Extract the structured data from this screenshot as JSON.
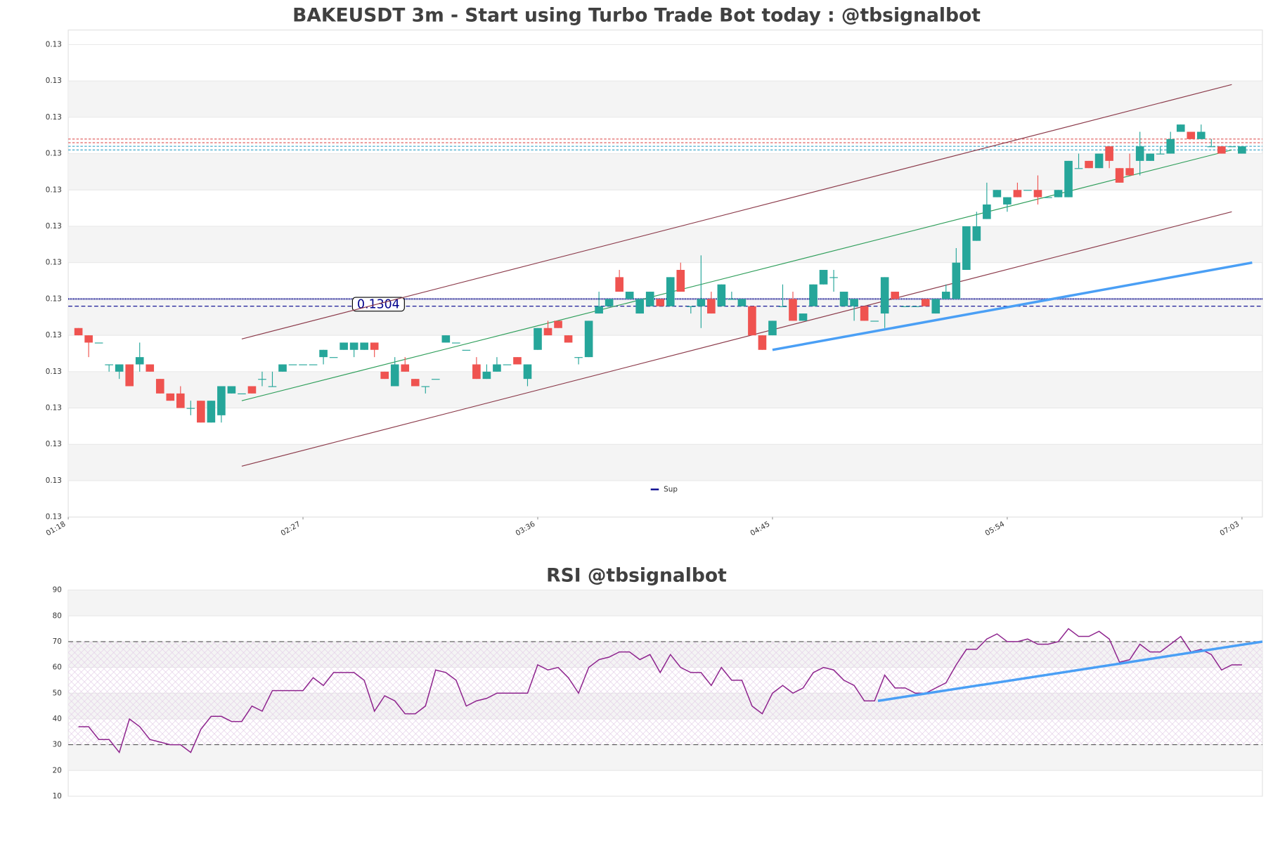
{
  "chart_data": [
    {
      "type": "candlestick",
      "title": "BAKEUSDT 3m - Start using Turbo Trade Bot today : @tbsignalbot",
      "x": [
        81,
        84,
        87,
        90,
        93,
        96,
        99,
        102,
        105,
        108,
        111,
        114,
        117,
        120,
        123,
        126,
        129,
        132,
        135,
        138,
        141,
        144,
        147,
        150,
        153,
        156,
        159,
        162,
        165,
        168,
        171,
        174,
        177,
        180,
        183,
        186,
        189,
        192,
        195,
        198,
        201,
        204,
        207,
        210,
        213,
        216,
        219,
        222,
        225,
        228,
        231,
        234,
        237,
        240,
        243,
        246,
        249,
        252,
        255,
        258,
        261,
        264,
        267,
        270,
        273,
        276,
        279,
        282,
        285,
        288,
        291,
        294,
        297,
        300,
        303,
        306,
        309,
        312,
        315,
        318,
        321,
        324,
        327,
        330,
        333,
        336,
        339,
        342,
        345,
        348,
        351,
        354,
        357,
        360,
        363,
        366,
        369,
        372,
        375,
        378,
        381,
        384,
        387,
        390,
        393,
        396,
        399,
        402,
        405,
        408,
        411,
        414,
        417,
        420,
        423
      ],
      "open": [
        0.13032,
        0.1303,
        0.13028,
        0.13022,
        0.1302,
        0.13022,
        0.13022,
        0.13022,
        0.13018,
        0.13014,
        0.13014,
        0.1301,
        0.13012,
        0.13006,
        0.13008,
        0.13014,
        0.13014,
        0.13016,
        0.13018,
        0.13016,
        0.1302,
        0.13022,
        0.13022,
        0.13022,
        0.13024,
        0.13024,
        0.13026,
        0.13026,
        0.13026,
        0.13028,
        0.1302,
        0.13016,
        0.13022,
        0.13018,
        0.13016,
        0.13018,
        0.13028,
        0.13028,
        0.13026,
        0.13022,
        0.13018,
        0.1302,
        0.13022,
        0.13024,
        0.13018,
        0.13026,
        0.13032,
        0.13034,
        0.1303,
        0.13024,
        0.13024,
        0.13036,
        0.13038,
        0.13046,
        0.1304,
        0.13036,
        0.13038,
        0.1304,
        0.13038,
        0.13048,
        0.13038,
        0.13038,
        0.1304,
        0.13038,
        0.1304,
        0.13038,
        0.13038,
        0.1303,
        0.1303,
        0.13038,
        0.1304,
        0.13034,
        0.13038,
        0.13044,
        0.13046,
        0.13038,
        0.13038,
        0.13038,
        0.13034,
        0.13036,
        0.13042,
        0.13038,
        0.13038,
        0.1304,
        0.13036,
        0.1304,
        0.1304,
        0.13048,
        0.13056,
        0.13062,
        0.13068,
        0.13066,
        0.1307,
        0.1307,
        0.1307,
        0.13068,
        0.13068,
        0.13068,
        0.13076,
        0.13078,
        0.13076,
        0.13082,
        0.13076,
        0.13076,
        0.13078,
        0.13078,
        0.1308,
        0.1308,
        0.13086,
        0.13086,
        0.13084,
        0.13082,
        0.13082,
        0.13082,
        0.1308
      ],
      "high": [
        0.13032,
        0.1303,
        0.13028,
        0.13022,
        0.13022,
        0.13022,
        0.13028,
        0.13022,
        0.13018,
        0.13014,
        0.13016,
        0.13012,
        0.13012,
        0.13012,
        0.13016,
        0.13016,
        0.13014,
        0.13016,
        0.1302,
        0.1302,
        0.13022,
        0.13022,
        0.13022,
        0.13022,
        0.13026,
        0.13024,
        0.13028,
        0.13028,
        0.13028,
        0.13028,
        0.1302,
        0.13024,
        0.13024,
        0.13018,
        0.13016,
        0.13018,
        0.1303,
        0.13028,
        0.13026,
        0.13024,
        0.13022,
        0.13024,
        0.13022,
        0.13024,
        0.13022,
        0.13032,
        0.13034,
        0.13034,
        0.1303,
        0.13024,
        0.13034,
        0.13042,
        0.1304,
        0.13048,
        0.13042,
        0.1304,
        0.13042,
        0.1304,
        0.13046,
        0.1305,
        0.13038,
        0.13052,
        0.13042,
        0.13044,
        0.13042,
        0.1304,
        0.13038,
        0.1303,
        0.13034,
        0.13044,
        0.13042,
        0.13036,
        0.13044,
        0.13048,
        0.13048,
        0.13042,
        0.1304,
        0.13038,
        0.13034,
        0.13046,
        0.13042,
        0.13038,
        0.13038,
        0.1304,
        0.1304,
        0.13044,
        0.13054,
        0.1306,
        0.13064,
        0.13072,
        0.1307,
        0.13068,
        0.13072,
        0.1307,
        0.13074,
        0.13068,
        0.1307,
        0.13078,
        0.1308,
        0.13078,
        0.1308,
        0.13082,
        0.13076,
        0.1308,
        0.13086,
        0.1308,
        0.13082,
        0.13086,
        0.13088,
        0.13086,
        0.13088,
        0.13084,
        0.13082,
        0.13082,
        0.13082
      ],
      "low": [
        0.1303,
        0.13024,
        0.13028,
        0.1302,
        0.13018,
        0.13016,
        0.1302,
        0.1302,
        0.13014,
        0.13012,
        0.1301,
        0.13008,
        0.13006,
        0.13006,
        0.13006,
        0.13014,
        0.13014,
        0.13014,
        0.13016,
        0.13016,
        0.1302,
        0.13022,
        0.13022,
        0.13022,
        0.13022,
        0.13024,
        0.13026,
        0.13024,
        0.13026,
        0.13024,
        0.13018,
        0.13016,
        0.1302,
        0.13016,
        0.13014,
        0.13018,
        0.13028,
        0.13028,
        0.13026,
        0.13018,
        0.13018,
        0.1302,
        0.13022,
        0.13022,
        0.13016,
        0.13026,
        0.1303,
        0.13032,
        0.13028,
        0.13022,
        0.13024,
        0.13036,
        0.13038,
        0.13042,
        0.1304,
        0.13036,
        0.13038,
        0.13038,
        0.13038,
        0.13042,
        0.13036,
        0.13032,
        0.13036,
        0.13038,
        0.1304,
        0.13038,
        0.1303,
        0.13026,
        0.1303,
        0.13038,
        0.13034,
        0.13034,
        0.13038,
        0.13044,
        0.13042,
        0.13038,
        0.13034,
        0.13034,
        0.13034,
        0.13032,
        0.1304,
        0.13038,
        0.13038,
        0.13038,
        0.13036,
        0.1304,
        0.1304,
        0.13048,
        0.13056,
        0.13062,
        0.13068,
        0.13064,
        0.13068,
        0.1307,
        0.13066,
        0.13068,
        0.13068,
        0.13068,
        0.13076,
        0.13076,
        0.13076,
        0.13076,
        0.13072,
        0.13074,
        0.13074,
        0.13078,
        0.1308,
        0.1308,
        0.13086,
        0.13084,
        0.13084,
        0.13082,
        0.1308,
        0.13082,
        0.1308
      ],
      "close": [
        0.1303,
        0.13028,
        0.13028,
        0.13022,
        0.13022,
        0.13016,
        0.13024,
        0.1302,
        0.13014,
        0.13012,
        0.1301,
        0.1301,
        0.13006,
        0.13012,
        0.13016,
        0.13016,
        0.13014,
        0.13014,
        0.13018,
        0.13016,
        0.13022,
        0.13022,
        0.13022,
        0.13022,
        0.13026,
        0.13024,
        0.13028,
        0.13028,
        0.13028,
        0.13026,
        0.13018,
        0.13022,
        0.1302,
        0.13016,
        0.13016,
        0.13018,
        0.1303,
        0.13028,
        0.13026,
        0.13018,
        0.1302,
        0.13022,
        0.13022,
        0.13022,
        0.13022,
        0.13032,
        0.1303,
        0.13032,
        0.13028,
        0.13024,
        0.13034,
        0.13038,
        0.1304,
        0.13042,
        0.13042,
        0.1304,
        0.13042,
        0.13038,
        0.13046,
        0.13042,
        0.13038,
        0.1304,
        0.13036,
        0.13044,
        0.1304,
        0.1304,
        0.1303,
        0.13026,
        0.13034,
        0.13038,
        0.13034,
        0.13036,
        0.13044,
        0.13048,
        0.13046,
        0.13042,
        0.1304,
        0.13034,
        0.13034,
        0.13046,
        0.1304,
        0.13038,
        0.13038,
        0.13038,
        0.1304,
        0.13042,
        0.1305,
        0.1306,
        0.1306,
        0.13066,
        0.1307,
        0.13068,
        0.13068,
        0.1307,
        0.13068,
        0.13068,
        0.1307,
        0.13078,
        0.13076,
        0.13076,
        0.1308,
        0.13078,
        0.13072,
        0.13074,
        0.13082,
        0.1308,
        0.1308,
        0.13084,
        0.13088,
        0.13084,
        0.13086,
        0.13082,
        0.1308,
        0.13082,
        0.13082
      ],
      "up_color": "#26a69a",
      "down_color": "#ef5350",
      "xlim": [
        78,
        429
      ],
      "xticks": [
        {
          "value": 78,
          "label": "01:18"
        },
        {
          "value": 147,
          "label": "02:27"
        },
        {
          "value": 216,
          "label": "03:36"
        },
        {
          "value": 285,
          "label": "04:45"
        },
        {
          "value": 354,
          "label": "05:54"
        },
        {
          "value": 423,
          "label": "07:03"
        }
      ],
      "ylim": [
        0.1298,
        0.13114
      ],
      "yticks": [
        {
          "value": 0.1298,
          "label": "0.13"
        },
        {
          "value": 0.1299,
          "label": "0.13"
        },
        {
          "value": 0.13,
          "label": "0.13"
        },
        {
          "value": 0.1301,
          "label": "0.13"
        },
        {
          "value": 0.1302,
          "label": "0.13"
        },
        {
          "value": 0.1303,
          "label": "0.13"
        },
        {
          "value": 0.1304,
          "label": "0.13"
        },
        {
          "value": 0.1305,
          "label": "0.13"
        },
        {
          "value": 0.1306,
          "label": "0.13"
        },
        {
          "value": 0.1307,
          "label": "0.13"
        },
        {
          "value": 0.1308,
          "label": "0.13"
        },
        {
          "value": 0.1309,
          "label": "0.13"
        },
        {
          "value": 0.131,
          "label": "0.13"
        },
        {
          "value": 0.1311,
          "label": "0.13"
        }
      ],
      "grid": true,
      "levels": [
        {
          "value": 0.13084,
          "color": "#e05a5a"
        },
        {
          "value": 0.13083,
          "color": "#e05a5a"
        },
        {
          "value": 0.13082,
          "color": "#3fa7c9"
        },
        {
          "value": 0.13081,
          "color": "#3fa7c9"
        }
      ],
      "support": {
        "name": "Sup",
        "color": "#00008b",
        "values": [
          0.1304,
          0.13038
        ],
        "label": "0.1304"
      },
      "channel": [
        {
          "color": "#8b3a4a",
          "x": [
            129,
            420
          ],
          "y": [
            0.13029,
            0.13099
          ]
        },
        {
          "color": "#2e9e5a",
          "x": [
            129,
            420
          ],
          "y": [
            0.13012,
            0.13081
          ]
        },
        {
          "color": "#8b3a4a",
          "x": [
            129,
            420
          ],
          "y": [
            0.12994,
            0.13064
          ]
        }
      ],
      "trendline": {
        "color": "#4a9ff5",
        "x": [
          285,
          426
        ],
        "y": [
          0.13026,
          0.1305
        ]
      },
      "legend": "lower center"
    },
    {
      "type": "line",
      "title": "RSI @tbsignalbot",
      "x": [
        81,
        84,
        87,
        90,
        93,
        96,
        99,
        102,
        105,
        108,
        111,
        114,
        117,
        120,
        123,
        126,
        129,
        132,
        135,
        138,
        141,
        144,
        147,
        150,
        153,
        156,
        159,
        162,
        165,
        168,
        171,
        174,
        177,
        180,
        183,
        186,
        189,
        192,
        195,
        198,
        201,
        204,
        207,
        210,
        213,
        216,
        219,
        222,
        225,
        228,
        231,
        234,
        237,
        240,
        243,
        246,
        249,
        252,
        255,
        258,
        261,
        264,
        267,
        270,
        273,
        276,
        279,
        282,
        285,
        288,
        291,
        294,
        297,
        300,
        303,
        306,
        309,
        312,
        315,
        318,
        321,
        324,
        327,
        330,
        333,
        336,
        339,
        342,
        345,
        348,
        351,
        354,
        357,
        360,
        363,
        366,
        369,
        372,
        375,
        378,
        381,
        384,
        387,
        390,
        393,
        396,
        399,
        402,
        405,
        408,
        411,
        414,
        417,
        420,
        423
      ],
      "values": [
        37,
        37,
        32,
        32,
        27,
        40,
        37,
        32,
        31,
        30,
        30,
        27,
        36,
        41,
        41,
        39,
        39,
        45,
        43,
        51,
        51,
        51,
        51,
        56,
        53,
        58,
        58,
        58,
        55,
        43,
        49,
        47,
        42,
        42,
        45,
        59,
        58,
        55,
        45,
        47,
        48,
        50,
        50,
        50,
        50,
        61,
        59,
        60,
        56,
        50,
        60,
        63,
        64,
        66,
        66,
        63,
        65,
        58,
        65,
        60,
        58,
        58,
        53,
        60,
        55,
        55,
        45,
        42,
        50,
        53,
        50,
        52,
        58,
        60,
        59,
        55,
        53,
        47,
        47,
        57,
        52,
        52,
        50,
        50,
        52,
        54,
        61,
        67,
        67,
        71,
        73,
        70,
        70,
        71,
        69,
        69,
        70,
        75,
        72,
        72,
        74,
        71,
        62,
        63,
        69,
        66,
        66,
        69,
        72,
        66,
        67,
        65,
        59,
        61,
        61
      ],
      "color": "#8e248e",
      "xlim": [
        78,
        429
      ],
      "ylim": [
        10,
        90
      ],
      "yticks": [
        10,
        20,
        30,
        40,
        50,
        60,
        70,
        80,
        90
      ],
      "grid": true,
      "levels": [
        70,
        30
      ],
      "trendline": {
        "color": "#4a9ff5",
        "x": [
          316,
          429
        ],
        "y": [
          47,
          70
        ]
      }
    }
  ]
}
